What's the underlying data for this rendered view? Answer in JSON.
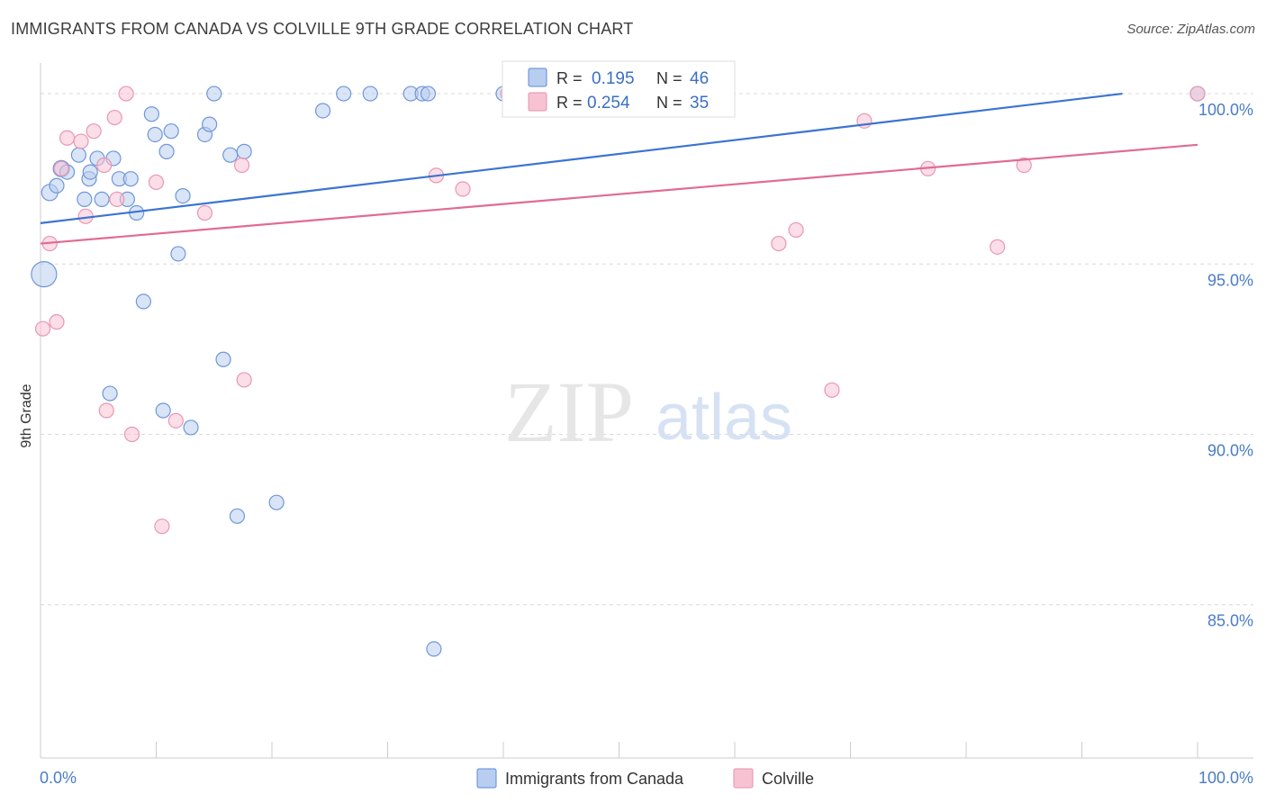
{
  "title": "IMMIGRANTS FROM CANADA VS COLVILLE 9TH GRADE CORRELATION CHART",
  "source": "Source: ZipAtlas.com",
  "watermark": {
    "zip": "ZIP",
    "atlas": "atlas"
  },
  "colors": {
    "blue": "#3b74d1",
    "blue_fill": "#b9cdf0",
    "pink": "#e06b95",
    "pink_fill": "#f7c3d3",
    "tick": "#4a7cc7",
    "grid": "#d8d8d8"
  },
  "chart_data": {
    "type": "scatter",
    "title": "IMMIGRANTS FROM CANADA VS COLVILLE 9TH GRADE CORRELATION CHART",
    "xlabel": "",
    "ylabel": "9th Grade",
    "xlim": [
      0,
      100
    ],
    "ylim": [
      80.5,
      100.9
    ],
    "x_tick_labels": [
      "0.0%",
      "100.0%"
    ],
    "y_ticks": [
      85,
      90,
      95,
      100
    ],
    "y_tick_labels": [
      "85.0%",
      "90.0%",
      "95.0%",
      "100.0%"
    ],
    "grid": true,
    "legend_position": "top-center",
    "legend": [
      {
        "r_label": "R =",
        "r_value": "0.195",
        "n_label": "N =",
        "n_value": "46"
      },
      {
        "r_label": "R =",
        "r_value": "0.254",
        "n_label": "N =",
        "n_value": "35"
      }
    ],
    "series": [
      {
        "name": "Immigrants from Canada",
        "trend": [
          [
            0,
            96.2
          ],
          [
            93.5,
            100.0
          ]
        ],
        "points": [
          [
            0.3,
            94.7,
            14
          ],
          [
            0.8,
            97.1,
            9
          ],
          [
            1.4,
            97.3,
            8
          ],
          [
            1.8,
            97.8,
            9
          ],
          [
            2.3,
            97.7,
            8
          ],
          [
            3.3,
            98.2,
            8
          ],
          [
            3.8,
            96.9,
            8
          ],
          [
            4.2,
            97.5,
            8
          ],
          [
            4.3,
            97.7,
            8
          ],
          [
            4.9,
            98.1,
            8
          ],
          [
            5.3,
            96.9,
            8
          ],
          [
            6.3,
            98.1,
            8
          ],
          [
            6.8,
            97.5,
            8
          ],
          [
            7.5,
            96.9,
            8
          ],
          [
            7.8,
            97.5,
            8
          ],
          [
            8.3,
            96.5,
            8
          ],
          [
            8.9,
            93.9,
            8
          ],
          [
            9.6,
            99.4,
            8
          ],
          [
            9.9,
            98.8,
            8
          ],
          [
            10.6,
            90.7,
            8
          ],
          [
            10.9,
            98.3,
            8
          ],
          [
            11.3,
            98.9,
            8
          ],
          [
            11.9,
            95.3,
            8
          ],
          [
            12.3,
            97.0,
            8
          ],
          [
            13.0,
            90.2,
            8
          ],
          [
            14.2,
            98.8,
            8
          ],
          [
            14.6,
            99.1,
            8
          ],
          [
            15.0,
            100.0,
            8
          ],
          [
            15.8,
            92.2,
            8
          ],
          [
            16.4,
            98.2,
            8
          ],
          [
            17.0,
            87.6,
            8
          ],
          [
            17.6,
            98.3,
            8
          ],
          [
            20.4,
            88.0,
            8
          ],
          [
            24.4,
            99.5,
            8
          ],
          [
            26.2,
            100.0,
            8
          ],
          [
            28.5,
            100.0,
            8
          ],
          [
            32.0,
            100.0,
            8
          ],
          [
            33.0,
            100.0,
            8
          ],
          [
            33.5,
            100.0,
            8
          ],
          [
            34.0,
            83.7,
            8
          ],
          [
            40.0,
            100.0,
            8
          ],
          [
            41.0,
            100.0,
            8
          ],
          [
            42.0,
            100.0,
            8
          ],
          [
            58.0,
            100.0,
            8
          ],
          [
            6.0,
            91.2,
            8
          ],
          [
            100.0,
            100.0,
            8
          ]
        ]
      },
      {
        "name": "Colville",
        "trend": [
          [
            0,
            95.6
          ],
          [
            100,
            98.5
          ]
        ],
        "points": [
          [
            0.2,
            93.1,
            8
          ],
          [
            0.8,
            95.6,
            8
          ],
          [
            1.4,
            93.3,
            8
          ],
          [
            1.8,
            97.8,
            8
          ],
          [
            2.3,
            98.7,
            8
          ],
          [
            3.5,
            98.6,
            8
          ],
          [
            3.9,
            96.4,
            8
          ],
          [
            4.6,
            98.9,
            8
          ],
          [
            5.5,
            97.9,
            8
          ],
          [
            5.7,
            90.7,
            8
          ],
          [
            6.4,
            99.3,
            8
          ],
          [
            6.6,
            96.9,
            8
          ],
          [
            7.4,
            100.0,
            8
          ],
          [
            7.9,
            90.0,
            8
          ],
          [
            10.0,
            97.4,
            8
          ],
          [
            10.5,
            87.3,
            8
          ],
          [
            11.7,
            90.4,
            8
          ],
          [
            14.2,
            96.5,
            8
          ],
          [
            17.4,
            97.9,
            8
          ],
          [
            17.6,
            91.6,
            8
          ],
          [
            34.2,
            97.6,
            8
          ],
          [
            36.5,
            97.2,
            8
          ],
          [
            40.4,
            100.0,
            8
          ],
          [
            41.0,
            100.0,
            8
          ],
          [
            45.3,
            100.0,
            8
          ],
          [
            50.0,
            100.0,
            8
          ],
          [
            55.0,
            100.0,
            8
          ],
          [
            63.8,
            95.6,
            8
          ],
          [
            65.3,
            96.0,
            8
          ],
          [
            68.4,
            91.3,
            8
          ],
          [
            71.2,
            99.2,
            8
          ],
          [
            76.7,
            97.8,
            8
          ],
          [
            82.7,
            95.5,
            8
          ],
          [
            85.0,
            97.9,
            8
          ],
          [
            100.0,
            100.0,
            8
          ]
        ]
      }
    ]
  }
}
